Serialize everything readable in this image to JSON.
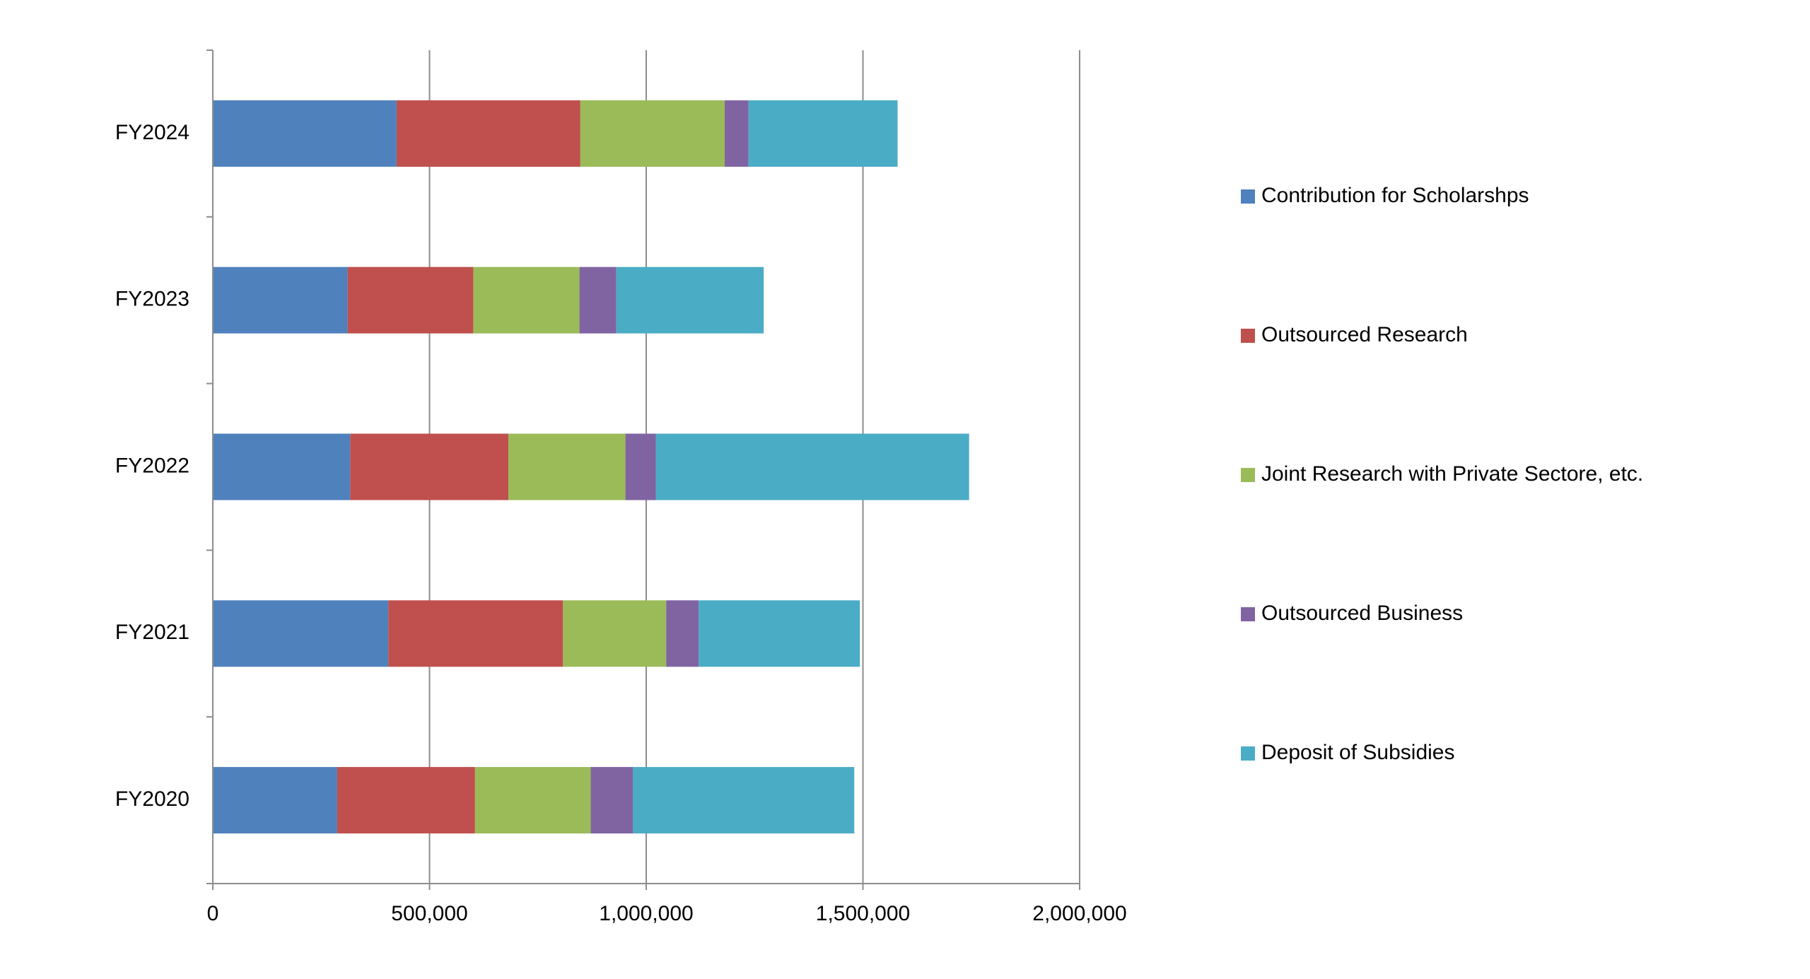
{
  "chart_data": {
    "type": "bar",
    "orientation": "horizontal",
    "stacked": true,
    "categories": [
      "FY2020",
      "FY2021",
      "FY2022",
      "FY2023",
      "FY2024"
    ],
    "series": [
      {
        "name": "Contribution for Scholarshps",
        "color": "#4F81BD",
        "values": [
          287000,
          405000,
          317000,
          311000,
          424000
        ]
      },
      {
        "name": "Outsourced Research",
        "color": "#C0504D",
        "values": [
          318000,
          403000,
          365000,
          290000,
          424000
        ]
      },
      {
        "name": "Joint Research with Private Sectore, etc.",
        "color": "#9BBB59",
        "values": [
          267000,
          238000,
          270000,
          245000,
          333000
        ]
      },
      {
        "name": "Outsourced Business",
        "color": "#8064A2",
        "values": [
          97000,
          75000,
          70000,
          85000,
          55000
        ]
      },
      {
        "name": "Deposit of Subsidies",
        "color": "#4BACC6",
        "values": [
          511000,
          372000,
          723000,
          340000,
          344000
        ]
      }
    ],
    "xlim": [
      0,
      2000000
    ],
    "xticks": [
      0,
      500000,
      1000000,
      1500000,
      2000000
    ],
    "xtick_labels": [
      "0",
      "500,000",
      "1,000,000",
      "1,500,000",
      "2,000,000"
    ],
    "grid": "vertical",
    "legend_position": "right"
  }
}
